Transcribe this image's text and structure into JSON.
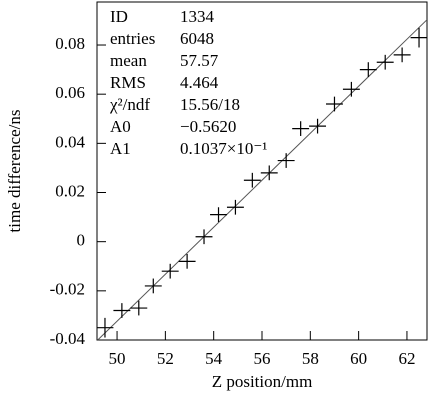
{
  "chart_data": {
    "type": "errorbar",
    "x_label": "Z position/mm",
    "y_label": "time difference/ns",
    "x": [
      49.5,
      50.2,
      50.9,
      51.5,
      52.2,
      52.9,
      53.6,
      54.2,
      54.9,
      55.6,
      56.3,
      57.0,
      57.6,
      58.3,
      59.0,
      59.7,
      60.4,
      61.1,
      61.8,
      62.5
    ],
    "values": [
      -0.035,
      -0.028,
      -0.027,
      -0.018,
      -0.012,
      -0.008,
      0.002,
      0.011,
      0.014,
      0.025,
      0.028,
      0.033,
      0.046,
      0.047,
      0.056,
      0.062,
      0.07,
      0.073,
      0.076,
      0.083
    ],
    "yerr": [
      0.004,
      0.003,
      0.003,
      0.003,
      0.003,
      0.003,
      0.003,
      0.003,
      0.003,
      0.003,
      0.003,
      0.003,
      0.003,
      0.003,
      0.003,
      0.003,
      0.003,
      0.003,
      0.003,
      0.004
    ],
    "xerr": 0.35,
    "color": "#000000",
    "fit": {
      "x": [
        49.2,
        62.8
      ],
      "y": [
        -0.04,
        0.09
      ],
      "color": "#555555"
    },
    "xlim": [
      49.17,
      62.83
    ],
    "ylim": [
      -0.04,
      0.0975
    ],
    "xticks": [
      50,
      52,
      54,
      56,
      58,
      60,
      62
    ],
    "yticks": [
      -0.04,
      -0.02,
      0,
      0.02,
      0.04,
      0.06,
      0.08
    ],
    "stats": [
      [
        "ID",
        "1334"
      ],
      [
        "entries",
        "6048"
      ],
      [
        "mean",
        "57.57"
      ],
      [
        "RMS",
        "4.464"
      ],
      [
        "χ²/ndf",
        "15.56/18"
      ],
      [
        "A0",
        "−0.5620"
      ],
      [
        "A1",
        "0.1037×10⁻¹"
      ]
    ]
  }
}
